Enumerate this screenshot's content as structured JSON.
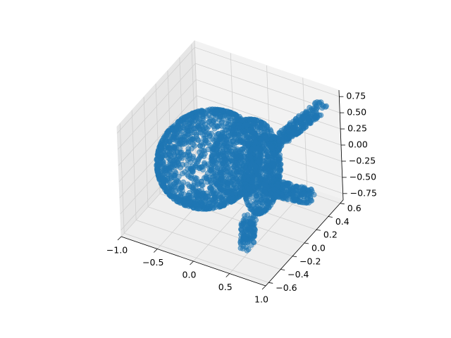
{
  "chart_data": {
    "type": "scatter",
    "projection": "3d",
    "title": "",
    "xlabel": "",
    "ylabel": "",
    "zlabel": "",
    "grid": true,
    "marker_color": "#1f77b4",
    "marker_alpha": 0.55,
    "xlim": [
      -1.0,
      1.0
    ],
    "ylim": [
      -0.65,
      0.65
    ],
    "zlim": [
      -0.85,
      0.85
    ],
    "x_ticks": [
      "−1.0",
      "−0.5",
      "0.0",
      "0.5",
      "1.0"
    ],
    "y_ticks": [
      "−0.6",
      "−0.4",
      "−0.2",
      "0.0",
      "0.2",
      "0.4",
      "0.6"
    ],
    "z_ticks": [
      "−0.75",
      "−0.50",
      "−0.25",
      "0.00",
      "0.25",
      "0.50",
      "0.75"
    ],
    "shape": "point cloud of an animal-like object: rounded body with a head and two elongated limbs",
    "components": [
      {
        "part": "body",
        "x": [
          -0.9,
          0.35
        ],
        "y": [
          -0.5,
          0.5
        ],
        "z": [
          -0.6,
          0.55
        ]
      },
      {
        "part": "head",
        "x": [
          0.3,
          0.6
        ],
        "y": [
          -0.3,
          0.3
        ],
        "z": [
          -0.5,
          0.6
        ]
      },
      {
        "part": "upper-limb",
        "x": [
          0.55,
          0.95
        ],
        "y": [
          0.2,
          0.6
        ],
        "z": [
          0.3,
          0.8
        ]
      },
      {
        "part": "lower-limb",
        "x": [
          0.55,
          1.0
        ],
        "y": [
          -0.1,
          0.3
        ],
        "z": [
          -0.4,
          -0.1
        ]
      }
    ]
  }
}
